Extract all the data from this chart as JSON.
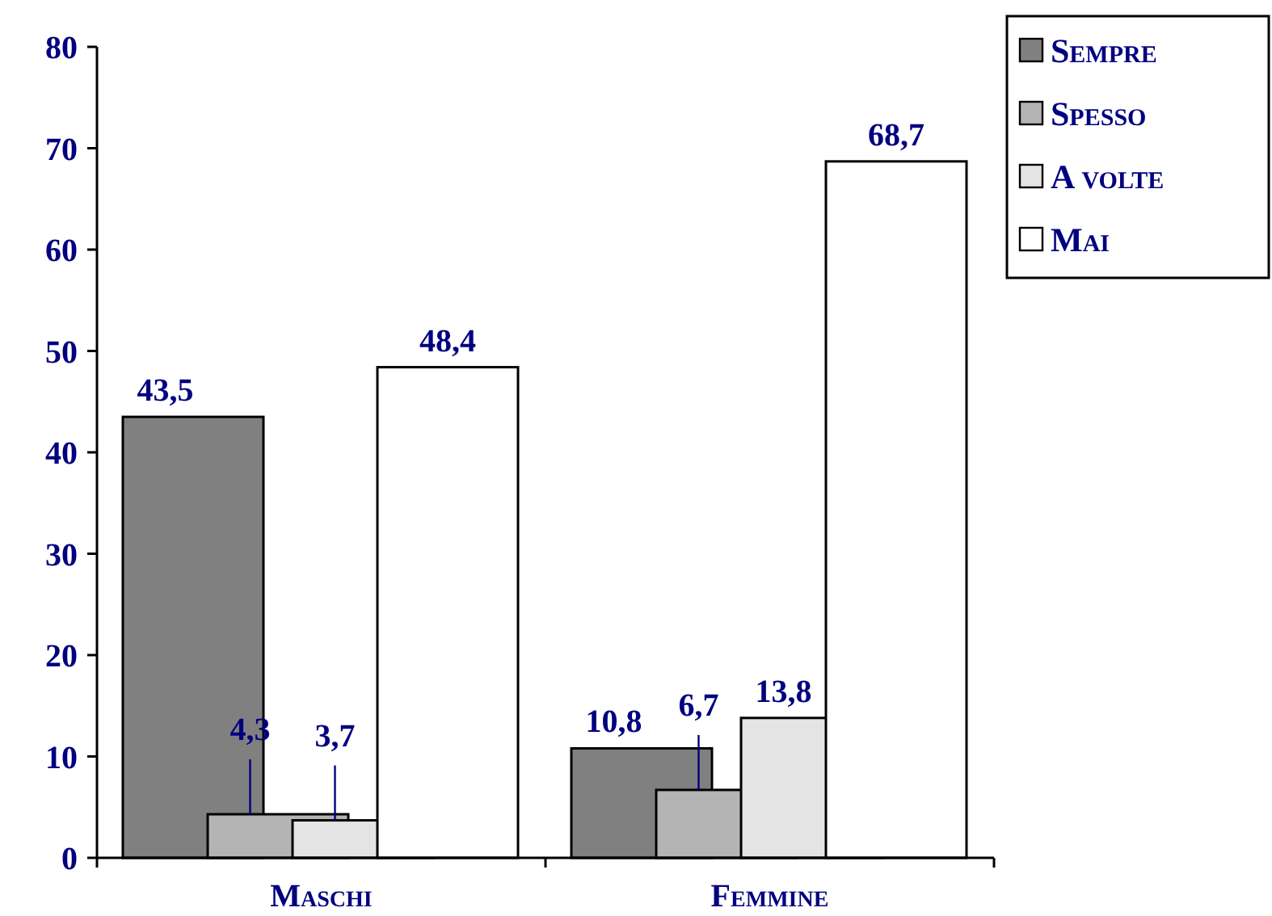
{
  "chart_data": {
    "type": "bar",
    "categories": [
      "Maschi",
      "Femmine"
    ],
    "series": [
      {
        "name": "Sempre",
        "color": "#808080",
        "values": [
          43.5,
          10.8
        ],
        "value_labels": [
          "43,5",
          "10,8"
        ]
      },
      {
        "name": "Spesso",
        "color": "#b4b4b4",
        "values": [
          4.3,
          6.7
        ],
        "value_labels": [
          "4,3",
          "6,7"
        ]
      },
      {
        "name": "A volte",
        "color": "#e4e4e4",
        "values": [
          3.7,
          13.8
        ],
        "value_labels": [
          "3,7",
          "13,8"
        ]
      },
      {
        "name": "Mai",
        "color": "#ffffff",
        "values": [
          48.4,
          68.7
        ],
        "value_labels": [
          "48,4",
          "68,7"
        ]
      }
    ],
    "ylim": [
      0,
      80
    ],
    "yticks": [
      0,
      10,
      20,
      30,
      40,
      50,
      60,
      70,
      80
    ],
    "grid": false,
    "legend": "top right"
  }
}
